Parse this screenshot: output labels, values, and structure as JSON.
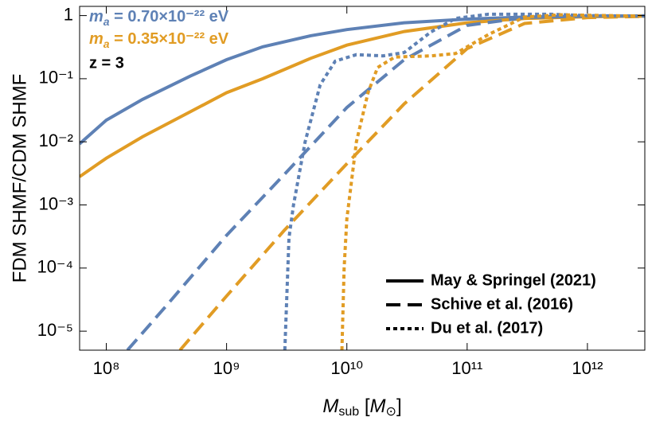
{
  "chart_data": {
    "type": "line",
    "y_label": "FDM SHMF/CDM SHMF",
    "x_label": {
      "main": "M",
      "main_sub": "sub",
      "open": " [",
      "unit": "M",
      "unit_sub": "⊙",
      "close": "]"
    },
    "annotation": "z = 3",
    "log_x": true,
    "log_y": true,
    "xlim": [
      60000000.0,
      3000000000000.0
    ],
    "ylim": [
      5e-06,
      1.4
    ],
    "xticks": [
      {
        "value": 100000000.0,
        "label": "10⁸"
      },
      {
        "value": 1000000000.0,
        "label": "10⁹"
      },
      {
        "value": 10000000000.0,
        "label": "10¹⁰"
      },
      {
        "value": 100000000000.0,
        "label": "10¹¹"
      },
      {
        "value": 1000000000000.0,
        "label": "10¹²"
      }
    ],
    "yticks": [
      {
        "value": 1e-05,
        "label": "10⁻⁵"
      },
      {
        "value": 0.0001,
        "label": "10⁻⁴"
      },
      {
        "value": 0.001,
        "label": "10⁻³"
      },
      {
        "value": 0.01,
        "label": "10⁻²"
      },
      {
        "value": 0.1,
        "label": "10⁻¹"
      },
      1
    ],
    "legend_masses": [
      {
        "symbol": "m",
        "sub": "a",
        "text": " = 0.70×10⁻²² eV",
        "color": "#5e81b5"
      },
      {
        "symbol": "m",
        "sub": "a",
        "text": " = 0.35×10⁻²² eV",
        "color": "#e19c24"
      }
    ],
    "legend_styles": [
      {
        "label": "May & Springel (2021)",
        "dash": "solid"
      },
      {
        "label": "Schive et al. (2016)",
        "dash": "dashed"
      },
      {
        "label": "Du et al. (2017)",
        "dash": "dotted"
      }
    ],
    "series": [
      {
        "color": "#5e81b5",
        "dash": "solid",
        "x": [
          60000000.0,
          100000000.0,
          200000000.0,
          500000000.0,
          1000000000.0,
          2000000000.0,
          5000000000.0,
          10000000000.0,
          30000000000.0,
          100000000000.0,
          300000000000.0,
          1000000000000.0,
          3000000000000.0
        ],
        "values": [
          0.0093,
          0.022,
          0.047,
          0.11,
          0.2,
          0.32,
          0.48,
          0.6,
          0.77,
          0.88,
          0.95,
          0.98,
          0.99
        ]
      },
      {
        "color": "#e19c24",
        "dash": "solid",
        "x": [
          60000000.0,
          100000000.0,
          200000000.0,
          500000000.0,
          1000000000.0,
          2000000000.0,
          5000000000.0,
          10000000000.0,
          30000000000.0,
          100000000000.0,
          300000000000.0,
          1000000000000.0,
          3000000000000.0
        ],
        "values": [
          0.0028,
          0.0055,
          0.012,
          0.03,
          0.06,
          0.1,
          0.21,
          0.34,
          0.56,
          0.77,
          0.9,
          0.96,
          0.98
        ]
      },
      {
        "color": "#5e81b5",
        "dash": "dashed",
        "x": [
          150000000.0,
          320000000.0,
          1000000000.0,
          3000000000.0,
          10000000000.0,
          30000000000.0,
          100000000000.0,
          300000000000.0,
          1000000000000.0,
          3000000000000.0
        ],
        "values": [
          5e-06,
          2.6e-05,
          0.00033,
          0.003,
          0.035,
          0.2,
          0.7,
          0.93,
          0.98,
          0.99
        ]
      },
      {
        "color": "#e19c24",
        "dash": "dashed",
        "x": [
          410000000.0,
          1000000000.0,
          3000000000.0,
          10000000000.0,
          30000000000.0,
          100000000000.0,
          300000000000.0,
          1000000000000.0,
          3000000000000.0
        ],
        "values": [
          5e-06,
          3.6e-05,
          0.00039,
          0.0045,
          0.04,
          0.3,
          0.75,
          0.93,
          0.97
        ]
      },
      {
        "color": "#5e81b5",
        "dash": "dotted",
        "x": [
          3050000000.0,
          3300000000.0,
          3600000000.0,
          4500000000.0,
          6000000000.0,
          8000000000.0,
          12000000000.0,
          20000000000.0,
          30000000000.0,
          50000000000.0,
          80000000000.0,
          150000000000.0,
          500000000000.0,
          1000000000000.0,
          3000000000000.0
        ],
        "values": [
          5e-06,
          0.0003,
          0.001,
          0.01,
          0.08,
          0.19,
          0.24,
          0.23,
          0.26,
          0.55,
          0.9,
          1.05,
          1.05,
          1.0,
          0.98
        ]
      },
      {
        "color": "#e19c24",
        "dash": "dotted",
        "x": [
          9100000000.0,
          9500000000.0,
          10000000000.0,
          12000000000.0,
          15000000000.0,
          18000000000.0,
          25000000000.0,
          50000000000.0,
          80000000000.0,
          150000000000.0,
          300000000000.0,
          600000000000.0,
          1500000000000.0,
          3000000000000.0
        ],
        "values": [
          5e-06,
          0.0001,
          0.0006,
          0.01,
          0.06,
          0.15,
          0.22,
          0.23,
          0.25,
          0.5,
          0.95,
          1.03,
          1.0,
          0.98
        ]
      }
    ]
  }
}
